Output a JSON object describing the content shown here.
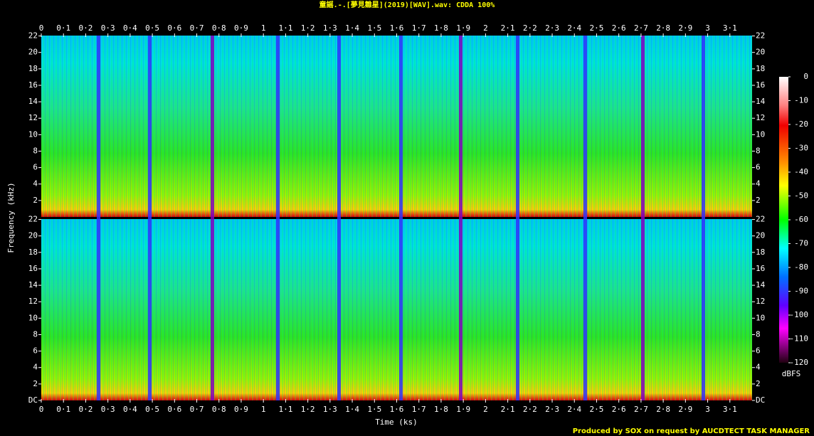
{
  "chart_data": {
    "type": "spectrogram",
    "title": "童謡.-.[夢見雛星](2019)[WAV].wav: CDDA 100%",
    "xlabel": "Time (ks)",
    "ylabel": "Frequency (kHz)",
    "xlim": [
      0,
      3.2
    ],
    "xticks": [
      0,
      {
        "value": 0.1,
        "label": "0·1"
      },
      {
        "value": 0.2,
        "label": "0·2"
      },
      {
        "value": 0.3,
        "label": "0·3"
      },
      {
        "value": 0.4,
        "label": "0·4"
      },
      {
        "value": 0.5,
        "label": "0·5"
      },
      {
        "value": 0.6,
        "label": "0·6"
      },
      {
        "value": 0.7,
        "label": "0·7"
      },
      {
        "value": 0.8,
        "label": "0·8"
      },
      {
        "value": 0.9,
        "label": "0·9"
      },
      1,
      {
        "value": 1.1,
        "label": "1·1"
      },
      {
        "value": 1.2,
        "label": "1·2"
      },
      {
        "value": 1.3,
        "label": "1·3"
      },
      {
        "value": 1.4,
        "label": "1·4"
      },
      {
        "value": 1.5,
        "label": "1·5"
      },
      {
        "value": 1.6,
        "label": "1·6"
      },
      {
        "value": 1.7,
        "label": "1·7"
      },
      {
        "value": 1.8,
        "label": "1·8"
      },
      {
        "value": 1.9,
        "label": "1·9"
      },
      2,
      {
        "value": 2.1,
        "label": "2·1"
      },
      {
        "value": 2.2,
        "label": "2·2"
      },
      {
        "value": 2.3,
        "label": "2·3"
      },
      {
        "value": 2.4,
        "label": "2·4"
      },
      {
        "value": 2.5,
        "label": "2·5"
      },
      {
        "value": 2.6,
        "label": "2·6"
      },
      {
        "value": 2.7,
        "label": "2·7"
      },
      {
        "value": 2.8,
        "label": "2·8"
      },
      {
        "value": 2.9,
        "label": "2·9"
      },
      3,
      {
        "value": 3.1,
        "label": "3·1"
      }
    ],
    "ylim": [
      0,
      22.05
    ],
    "yticks": [
      {
        "value": 0,
        "label": "DC"
      },
      2,
      4,
      6,
      8,
      10,
      12,
      14,
      16,
      18,
      20,
      22
    ],
    "colorbar": {
      "label": "dBFS",
      "lim": [
        -120,
        0
      ],
      "ticks": [
        0,
        -10,
        -20,
        -30,
        -40,
        -50,
        -60,
        -70,
        -80,
        -90,
        -100,
        -110,
        -120
      ]
    },
    "footer": "Produced by SOX on request by AUCDTECT TASK MANAGER"
  }
}
